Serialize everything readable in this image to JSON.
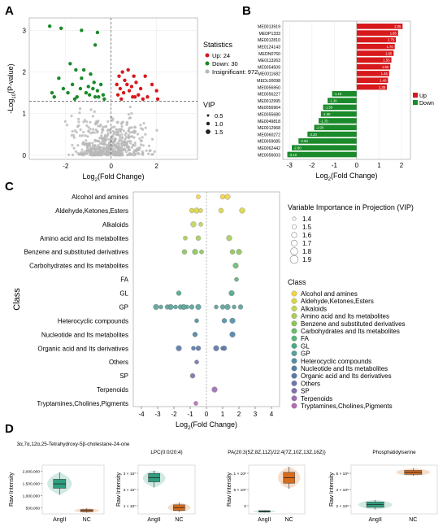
{
  "panel_letters": {
    "a": "A",
    "b": "B",
    "c": "C",
    "d": "D"
  },
  "colors": {
    "up": "#d7191c",
    "down": "#1a8a2a",
    "insig": "#b8b8b8",
    "teal": "#2f9e7e",
    "orange": "#d96c1a"
  },
  "chart_data": [
    {
      "panel": "A",
      "type": "scatter",
      "xlabel": "Log2(Fold Change)",
      "ylabel": "-Log10(P-value)",
      "xticks": [
        -2,
        0,
        2
      ],
      "yticks": [
        0,
        1,
        2,
        3
      ],
      "xlim": [
        -3.6,
        3.8
      ],
      "ylim": [
        -0.1,
        3.3
      ],
      "threshold_y": 1.3,
      "threshold_x": 0,
      "legend": {
        "title": "Statistics",
        "items": [
          "Up: 24",
          "Down: 30",
          "Insignificant: 972"
        ],
        "vip_title": "VIP",
        "vip_items": [
          "0.5",
          "1.0",
          "1.5"
        ]
      },
      "up_points": [
        [
          0.3,
          1.45
        ],
        [
          0.4,
          1.6
        ],
        [
          0.55,
          1.5
        ],
        [
          0.6,
          1.8
        ],
        [
          0.7,
          1.7
        ],
        [
          0.8,
          1.55
        ],
        [
          0.9,
          1.65
        ],
        [
          0.35,
          1.9
        ],
        [
          0.5,
          2.0
        ],
        [
          0.75,
          2.05
        ],
        [
          1.0,
          1.9
        ],
        [
          1.05,
          1.4
        ],
        [
          1.2,
          1.45
        ],
        [
          1.3,
          1.6
        ],
        [
          1.5,
          1.9
        ],
        [
          1.6,
          1.4
        ],
        [
          1.8,
          1.7
        ],
        [
          2.0,
          1.55
        ],
        [
          2.05,
          1.35
        ],
        [
          1.1,
          1.75
        ],
        [
          0.45,
          1.35
        ],
        [
          1.4,
          1.35
        ],
        [
          0.25,
          1.7
        ],
        [
          0.95,
          1.4
        ]
      ],
      "down_points": [
        [
          -2.7,
          3.1
        ],
        [
          -2.2,
          3.05
        ],
        [
          -1.3,
          3.0
        ],
        [
          -0.6,
          2.95
        ],
        [
          -0.7,
          2.65
        ],
        [
          -1.8,
          2.2
        ],
        [
          -1.55,
          2.05
        ],
        [
          -1.3,
          1.85
        ],
        [
          -1.2,
          2.05
        ],
        [
          -0.9,
          1.95
        ],
        [
          -0.75,
          1.75
        ],
        [
          -2.3,
          1.85
        ],
        [
          -2.1,
          1.6
        ],
        [
          -1.9,
          1.5
        ],
        [
          -1.7,
          1.7
        ],
        [
          -1.5,
          1.4
        ],
        [
          -1.35,
          1.6
        ],
        [
          -1.1,
          1.5
        ],
        [
          -0.95,
          1.45
        ],
        [
          -0.8,
          1.6
        ],
        [
          -0.6,
          1.55
        ],
        [
          -0.45,
          1.7
        ],
        [
          -0.35,
          1.45
        ],
        [
          -0.3,
          1.35
        ],
        [
          -2.5,
          1.4
        ],
        [
          -2.6,
          1.5
        ],
        [
          -1.0,
          1.65
        ],
        [
          -0.55,
          1.4
        ],
        [
          -1.6,
          1.35
        ],
        [
          -0.7,
          1.4
        ]
      ]
    },
    {
      "panel": "B",
      "type": "bar",
      "xlabel": "Log2(Fold Change)",
      "xticks": [
        -3,
        -2,
        -1,
        0,
        1,
        2
      ],
      "xlim": [
        -3.3,
        2.4
      ],
      "legend": [
        "Up",
        "Down"
      ],
      "categories": [
        "ME0013919",
        "MEDP1333",
        "ME0012810",
        "ME0124143",
        "MEDN0760",
        "ME0113263",
        "ME0054509",
        "ME0011682",
        "MEDL00098",
        "ME0056950",
        "ME0056227",
        "ME0012995",
        "ME0056964",
        "ME0055680",
        "ME0049818",
        "ME0012968",
        "ME0060272",
        "ME0059085",
        "ME0062442",
        "ME0056003"
      ],
      "values": [
        2.05,
        1.85,
        1.75,
        1.7,
        1.65,
        1.55,
        1.5,
        1.45,
        1.4,
        1.35,
        -1.1,
        -1.3,
        -1.5,
        -1.6,
        -1.7,
        -1.9,
        -2.2,
        -2.6,
        -2.9,
        -3.1
      ],
      "value_labels": [
        "2.05",
        "1.85",
        "1.75",
        "1.70",
        "1.65",
        "1.55",
        "1.50",
        "1.45",
        "1.40",
        "1.35",
        "-1.10",
        "-1.30",
        "-1.50",
        "-1.60",
        "-1.70",
        "-1.90",
        "-2.20",
        "-2.60",
        "-2.90",
        "-3.10"
      ]
    },
    {
      "panel": "C",
      "type": "scatter",
      "xlabel": "Log2(Fold Change)",
      "ylabel": "Class",
      "xticks": [
        -4,
        -3,
        -2,
        -1,
        0,
        1,
        2,
        3,
        4
      ],
      "xlim": [
        -4.5,
        4.5
      ],
      "classes": [
        {
          "name": "Alcohol and amines",
          "color": "#f2d347",
          "x": [
            -0.5,
            1.0,
            1.3
          ]
        },
        {
          "name": "Aldehyde,Ketones,Esters",
          "color": "#d9d54a",
          "x": [
            -0.9,
            -0.6,
            -0.35,
            0.9,
            2.2
          ]
        },
        {
          "name": "Alkaloids",
          "color": "#c3d456",
          "x": [
            -0.8,
            -0.35
          ]
        },
        {
          "name": "Amino acid and Its metabolites",
          "color": "#a9cd5a",
          "x": [
            -1.3,
            -0.5,
            1.4
          ]
        },
        {
          "name": "Benzene and substituted derivatives",
          "color": "#8cc45c",
          "x": [
            -1.35,
            -0.7,
            -0.3,
            1.6,
            2.0
          ]
        },
        {
          "name": "Carbohydrates and Its metabolites",
          "color": "#6cbb6e",
          "x": [
            1.8
          ]
        },
        {
          "name": "FA",
          "color": "#59b47a",
          "x": [
            1.85
          ]
        },
        {
          "name": "GL",
          "color": "#4ba985",
          "x": [
            -1.7,
            1.55
          ]
        },
        {
          "name": "GP",
          "color": "#5aa09a",
          "x": [
            -3.1,
            -2.8,
            -2.4,
            -2.2,
            -1.9,
            -1.6,
            -1.4,
            -1.2,
            -0.9,
            -0.5,
            0.6,
            1.0,
            1.3,
            1.7,
            2.1
          ]
        },
        {
          "name": "Heterocyclic compounds",
          "color": "#4f8fa3",
          "x": [
            -0.6,
            1.1,
            1.6
          ]
        },
        {
          "name": "Nucleotide and Its metabolites",
          "color": "#4e82a4",
          "x": [
            -0.7,
            1.6
          ]
        },
        {
          "name": "Organic acid and Its derivatives",
          "color": "#5977a7",
          "x": [
            -1.7,
            -0.8,
            -0.5,
            0.6,
            1.0,
            1.1
          ]
        },
        {
          "name": "Others",
          "color": "#6f76ac",
          "x": [
            -0.6
          ]
        },
        {
          "name": "SP",
          "color": "#7e72ad",
          "x": [
            -0.85
          ]
        },
        {
          "name": "Terpenoids",
          "color": "#9a6fb1",
          "x": [
            0.5
          ]
        },
        {
          "name": "Tryptamines,Cholines,Pigments",
          "color": "#b36cb2",
          "x": [
            -0.65
          ]
        }
      ],
      "vip_legend": {
        "title": "Variable Importance in Projection (VIP)",
        "items": [
          "1.4",
          "1.5",
          "1.6",
          "1.7",
          "1.8",
          "1.9"
        ]
      },
      "class_legend_title": "Class"
    },
    {
      "panel": "D",
      "type": "box",
      "subplots": [
        {
          "title": "3α,7α,12α,25-Tetrahydroxy-5β-cholestane-24-one",
          "ylabel": "Raw Intensity",
          "yticks": [
            "500,000",
            "1,000,000",
            "1,500,000",
            "2,000,000"
          ],
          "ylim": [
            300000,
            2200000
          ],
          "groups": [
            {
              "name": "AngII",
              "q1": 1300000,
              "median": 1470000,
              "q3": 1650000,
              "min": 1050000,
              "max": 1920000
            },
            {
              "name": "NC",
              "q1": 390000,
              "median": 430000,
              "q3": 470000,
              "min": 350000,
              "max": 520000
            }
          ]
        },
        {
          "title": "LPC(0:0/20:4)",
          "ylabel": "Raw Intensity",
          "yticks": [
            "1 × 10⁷",
            "2 × 10⁷",
            "3 × 10⁷"
          ],
          "ylim": [
            0.3,
            3.8
          ],
          "groups": [
            {
              "name": "AngII",
              "q1": 2.6,
              "median": 2.9,
              "q3": 3.2,
              "min": 2.2,
              "max": 3.4
            },
            {
              "name": "NC",
              "q1": 0.55,
              "median": 0.75,
              "q3": 0.95,
              "min": 0.45,
              "max": 1.1
            }
          ]
        },
        {
          "title": "PA(20:3(5Z,8Z,11Z)/22:4(7Z,10Z,13Z,16Z))",
          "ylabel": "Raw Intensity",
          "yticks": [
            "0",
            "5 × 10⁵",
            "1 × 10⁶"
          ],
          "ylim": [
            0,
            1.35
          ],
          "groups": [
            {
              "name": "AngII",
              "q1": 0.05,
              "median": 0.07,
              "q3": 0.09,
              "min": 0.04,
              "max": 0.1
            },
            {
              "name": "NC",
              "q1": 0.85,
              "median": 1.0,
              "q3": 1.15,
              "min": 0.7,
              "max": 1.3
            }
          ]
        },
        {
          "title": "Phosphatidylserine",
          "ylabel": "Raw Intensity",
          "yticks": [
            "2 × 10⁶",
            "4 × 10⁶",
            "6 × 10⁶"
          ],
          "ylim": [
            0,
            7.4
          ],
          "groups": [
            {
              "name": "AngII",
              "q1": 1.0,
              "median": 1.4,
              "q3": 1.8,
              "min": 0.7,
              "max": 2.1
            },
            {
              "name": "NC",
              "q1": 6.0,
              "median": 6.3,
              "q3": 6.6,
              "min": 5.8,
              "max": 6.9
            }
          ]
        }
      ]
    }
  ]
}
